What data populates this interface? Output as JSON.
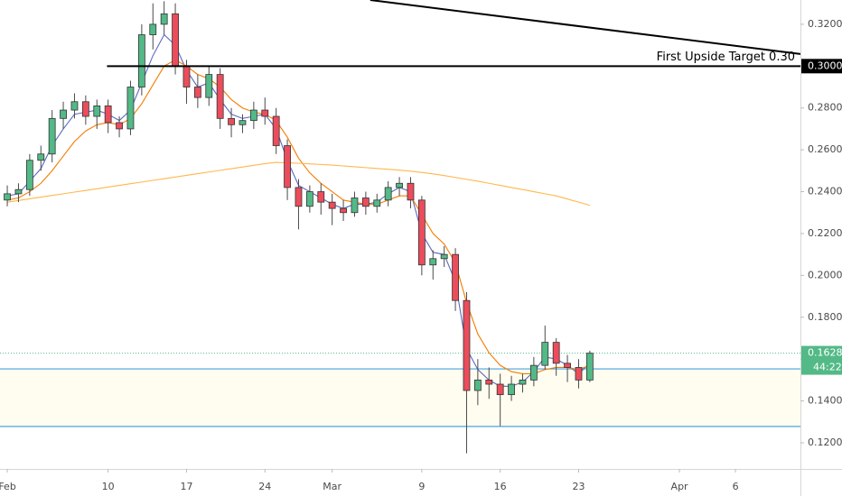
{
  "chart_data": {
    "type": "candlestick",
    "x": [
      0,
      1,
      2,
      3,
      4,
      5,
      6,
      7,
      8,
      9,
      10,
      11,
      12,
      13,
      14,
      15,
      16,
      17,
      18,
      19,
      20,
      21,
      22,
      23,
      24,
      25,
      26,
      27,
      28,
      29,
      30,
      31,
      32,
      33,
      34,
      35,
      36,
      37,
      38,
      39,
      40,
      41,
      42,
      43,
      44,
      45,
      46,
      47,
      48,
      49,
      50,
      51,
      52
    ],
    "open": [
      0.236,
      0.239,
      0.241,
      0.255,
      0.258,
      0.275,
      0.279,
      0.283,
      0.276,
      0.281,
      0.273,
      0.27,
      0.29,
      0.315,
      0.32,
      0.325,
      0.3,
      0.29,
      0.285,
      0.296,
      0.275,
      0.272,
      0.274,
      0.279,
      0.276,
      0.262,
      0.242,
      0.233,
      0.24,
      0.235,
      0.232,
      0.23,
      0.237,
      0.233,
      0.236,
      0.242,
      0.244,
      0.236,
      0.205,
      0.208,
      0.21,
      0.188,
      0.145,
      0.15,
      0.148,
      0.143,
      0.148,
      0.15,
      0.157,
      0.168,
      0.158,
      0.156,
      0.15
    ],
    "high": [
      0.243,
      0.244,
      0.258,
      0.262,
      0.279,
      0.283,
      0.287,
      0.286,
      0.284,
      0.284,
      0.276,
      0.293,
      0.32,
      0.33,
      0.331,
      0.33,
      0.303,
      0.296,
      0.3,
      0.299,
      0.28,
      0.277,
      0.283,
      0.285,
      0.28,
      0.265,
      0.246,
      0.243,
      0.244,
      0.239,
      0.236,
      0.24,
      0.24,
      0.239,
      0.245,
      0.247,
      0.247,
      0.238,
      0.212,
      0.214,
      0.213,
      0.192,
      0.16,
      0.156,
      0.153,
      0.152,
      0.153,
      0.161,
      0.176,
      0.17,
      0.162,
      0.16,
      0.164
    ],
    "low": [
      0.233,
      0.235,
      0.238,
      0.25,
      0.254,
      0.27,
      0.275,
      0.272,
      0.27,
      0.268,
      0.266,
      0.267,
      0.286,
      0.308,
      0.315,
      0.296,
      0.282,
      0.28,
      0.281,
      0.27,
      0.266,
      0.268,
      0.27,
      0.272,
      0.258,
      0.236,
      0.222,
      0.23,
      0.229,
      0.224,
      0.226,
      0.228,
      0.229,
      0.23,
      0.233,
      0.238,
      0.232,
      0.2,
      0.198,
      0.204,
      0.183,
      0.115,
      0.138,
      0.141,
      0.128,
      0.14,
      0.144,
      0.147,
      0.155,
      0.152,
      0.149,
      0.146,
      0.149
    ],
    "close": [
      0.239,
      0.241,
      0.255,
      0.258,
      0.275,
      0.279,
      0.283,
      0.276,
      0.281,
      0.273,
      0.27,
      0.29,
      0.315,
      0.32,
      0.325,
      0.3,
      0.29,
      0.285,
      0.296,
      0.275,
      0.272,
      0.274,
      0.279,
      0.276,
      0.262,
      0.242,
      0.233,
      0.24,
      0.235,
      0.232,
      0.23,
      0.237,
      0.233,
      0.236,
      0.242,
      0.244,
      0.236,
      0.205,
      0.208,
      0.21,
      0.188,
      0.145,
      0.15,
      0.148,
      0.143,
      0.148,
      0.15,
      0.157,
      0.168,
      0.158,
      0.156,
      0.15,
      0.1628
    ],
    "up_color": "#53b987",
    "down_color": "#eb4d5c",
    "series": [
      {
        "color": "#5b6bbf",
        "values": [
          0.238,
          0.239,
          0.245,
          0.251,
          0.262,
          0.27,
          0.277,
          0.278,
          0.279,
          0.277,
          0.274,
          0.279,
          0.292,
          0.305,
          0.315,
          0.31,
          0.298,
          0.29,
          0.292,
          0.284,
          0.277,
          0.275,
          0.276,
          0.277,
          0.27,
          0.255,
          0.243,
          0.24,
          0.237,
          0.234,
          0.232,
          0.234,
          0.234,
          0.235,
          0.239,
          0.242,
          0.24,
          0.22,
          0.211,
          0.21,
          0.197,
          0.165,
          0.155,
          0.15,
          0.147,
          0.147,
          0.149,
          0.154,
          0.161,
          0.16,
          0.157,
          0.153,
          0.158
        ]
      },
      {
        "color": "#f57c00",
        "values": [
          0.236,
          0.237,
          0.24,
          0.244,
          0.25,
          0.257,
          0.264,
          0.269,
          0.272,
          0.273,
          0.272,
          0.275,
          0.282,
          0.291,
          0.3,
          0.303,
          0.3,
          0.296,
          0.294,
          0.29,
          0.284,
          0.28,
          0.278,
          0.277,
          0.274,
          0.266,
          0.256,
          0.249,
          0.244,
          0.24,
          0.236,
          0.235,
          0.234,
          0.234,
          0.236,
          0.238,
          0.238,
          0.229,
          0.22,
          0.215,
          0.206,
          0.187,
          0.172,
          0.163,
          0.157,
          0.154,
          0.153,
          0.153,
          0.155,
          0.156,
          0.156,
          0.155,
          0.157
        ]
      },
      {
        "color": "#ffb74d",
        "values": [
          0.235,
          0.2358,
          0.2366,
          0.2374,
          0.2382,
          0.239,
          0.2398,
          0.2406,
          0.2414,
          0.2422,
          0.243,
          0.2438,
          0.2446,
          0.2454,
          0.2462,
          0.247,
          0.2478,
          0.2486,
          0.2494,
          0.2502,
          0.251,
          0.2518,
          0.2526,
          0.2534,
          0.254,
          0.2538,
          0.2536,
          0.2533,
          0.253,
          0.2527,
          0.2523,
          0.2519,
          0.2515,
          0.2511,
          0.2507,
          0.2503,
          0.2498,
          0.2492,
          0.2485,
          0.2477,
          0.2468,
          0.2459,
          0.245,
          0.244,
          0.243,
          0.242,
          0.241,
          0.24,
          0.239,
          0.238,
          0.2365,
          0.235,
          0.2335
        ]
      }
    ],
    "xlim": [
      -0.65,
      70.8
    ],
    "ylim": [
      0.1075,
      0.3316
    ],
    "xticks": [
      {
        "value": 0,
        "label": "Feb"
      },
      {
        "value": 9,
        "label": "10"
      },
      {
        "value": 16,
        "label": "17"
      },
      {
        "value": 23,
        "label": "24"
      },
      {
        "value": 29,
        "label": "Mar"
      },
      {
        "value": 37,
        "label": "9"
      },
      {
        "value": 44,
        "label": "16"
      },
      {
        "value": 51,
        "label": "23"
      },
      {
        "value": 60,
        "label": "Apr"
      },
      {
        "value": 65,
        "label": "6"
      }
    ],
    "yticks": [
      {
        "value": 0.12,
        "label": "0.12000"
      },
      {
        "value": 0.14,
        "label": "0.14000"
      },
      {
        "value": 0.16,
        "label": "0.16000"
      },
      {
        "value": 0.18,
        "label": "0.18000"
      },
      {
        "value": 0.2,
        "label": "0.20000"
      },
      {
        "value": 0.22,
        "label": "0.22000"
      },
      {
        "value": 0.24,
        "label": "0.24000"
      },
      {
        "value": 0.26,
        "label": "0.26000"
      },
      {
        "value": 0.28,
        "label": "0.28000"
      },
      {
        "value": 0.3,
        "label": "0.30000"
      },
      {
        "value": 0.32,
        "label": "0.32000"
      }
    ],
    "target_line": {
      "value": 0.3,
      "label": "0.30000",
      "x_start": 8.9,
      "color": "#000000"
    },
    "zone": {
      "top": 0.1553,
      "bottom": 0.1278,
      "color": "#4aa3df",
      "fill": "#fffdf0"
    },
    "trendline": {
      "x": [
        32.4,
        70.8
      ],
      "y": [
        0.3316,
        0.3058
      ],
      "color": "#000000"
    },
    "annotation": "First Upside Target 0.30",
    "last_price": 0.16285,
    "last_price_color": "#53b987",
    "countdown": "44:22"
  }
}
